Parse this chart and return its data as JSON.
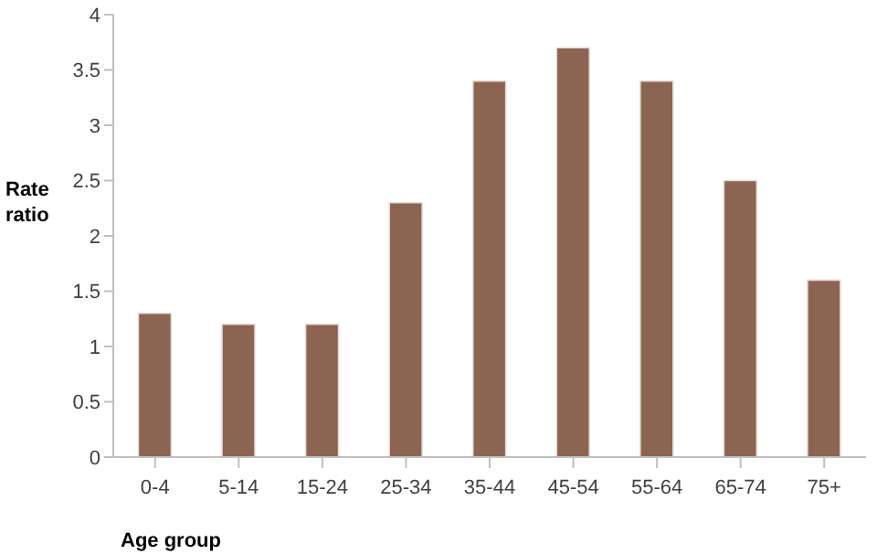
{
  "chart_data": {
    "type": "bar",
    "xlabel": "Age group",
    "ylabel": "Rate ratio",
    "categories": [
      "0-4",
      "5-14",
      "15-24",
      "25-34",
      "35-44",
      "45-54",
      "55-64",
      "65-74",
      "75+"
    ],
    "values": [
      1.3,
      1.2,
      1.2,
      2.3,
      3.4,
      3.7,
      3.4,
      2.5,
      1.6
    ],
    "color": "#8b6552",
    "ylim": [
      0,
      4
    ],
    "yticks": [
      0,
      0.5,
      1,
      1.5,
      2,
      2.5,
      3,
      3.5,
      4
    ],
    "grid": false,
    "legend": false
  }
}
